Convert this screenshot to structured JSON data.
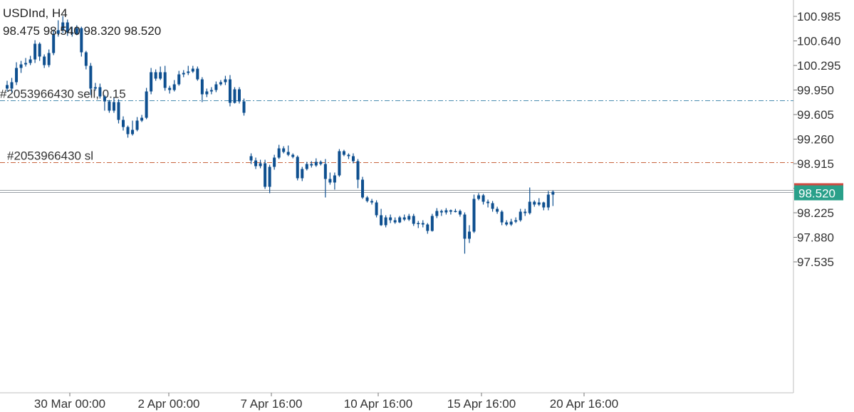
{
  "header": {
    "symbol": "USDInd",
    "timeframe": "H4",
    "title": "USDInd, H4",
    "ohlc": "98.475 98.540 98.320 98.520"
  },
  "colors": {
    "candle": "#0e4f8f",
    "grid_border": "#bfbfbf",
    "sell_line": "#4a8db0",
    "sl_line": "#c8643c",
    "price_tag_bg": "#2aa08a",
    "price_tag_bg_top": "#d04a40",
    "current_line": "#9aa0a6"
  },
  "chart_data": {
    "type": "candlestick",
    "y_ticks": [
      "100.985",
      "100.640",
      "100.295",
      "99.950",
      "99.605",
      "99.260",
      "98.915",
      "98.570",
      "98.225",
      "97.880",
      "97.535"
    ],
    "ylim": [
      97.25,
      101.1
    ],
    "x_ticks": [
      "30 Mar 00:00",
      "2 Apr 00:00",
      "7 Apr 16:00",
      "10 Apr 16:00",
      "15 Apr 16:00",
      "20 Apr 16:00"
    ],
    "current_price": 98.52,
    "current_price_label": "98.520",
    "order_lines": [
      {
        "label": "#2053966430 sell, 0.15",
        "price": 99.8,
        "kind": "sell"
      },
      {
        "label": "#2053966430 sl",
        "price": 98.93,
        "kind": "sl"
      }
    ],
    "candles": [
      [
        100.02,
        99.97,
        100.08,
        99.93
      ],
      [
        99.97,
        100.06,
        100.12,
        99.92
      ],
      [
        100.06,
        100.26,
        100.34,
        100.02
      ],
      [
        100.26,
        100.31,
        100.36,
        100.19
      ],
      [
        100.31,
        100.33,
        100.4,
        100.28
      ],
      [
        100.33,
        100.38,
        100.43,
        100.3
      ],
      [
        100.38,
        100.6,
        100.65,
        100.33
      ],
      [
        100.6,
        100.42,
        100.62,
        100.36
      ],
      [
        100.42,
        100.3,
        100.45,
        100.26
      ],
      [
        100.3,
        100.47,
        100.52,
        100.27
      ],
      [
        100.47,
        100.74,
        100.8,
        100.44
      ],
      [
        100.74,
        100.79,
        100.93,
        100.7
      ],
      [
        100.79,
        100.9,
        100.99,
        100.75
      ],
      [
        100.9,
        100.76,
        100.94,
        100.71
      ],
      [
        100.76,
        100.74,
        100.84,
        100.7
      ],
      [
        100.74,
        100.82,
        100.86,
        100.72
      ],
      [
        100.82,
        100.48,
        100.84,
        100.42
      ],
      [
        100.48,
        100.29,
        100.5,
        100.24
      ],
      [
        100.29,
        99.97,
        100.33,
        99.88
      ],
      [
        99.97,
        99.99,
        100.05,
        99.94
      ],
      [
        99.99,
        99.86,
        100.04,
        99.83
      ],
      [
        99.86,
        99.79,
        99.88,
        99.66
      ],
      [
        99.79,
        99.66,
        99.81,
        99.63
      ],
      [
        99.66,
        99.78,
        99.84,
        99.63
      ],
      [
        99.78,
        99.53,
        99.82,
        99.48
      ],
      [
        99.53,
        99.43,
        99.58,
        99.38
      ],
      [
        99.43,
        99.33,
        99.45,
        99.28
      ],
      [
        99.33,
        99.39,
        99.52,
        99.31
      ],
      [
        99.39,
        99.52,
        99.57,
        99.37
      ],
      [
        99.52,
        99.56,
        99.6,
        99.5
      ],
      [
        99.56,
        99.93,
        99.98,
        99.54
      ],
      [
        99.93,
        100.2,
        100.26,
        99.89
      ],
      [
        100.2,
        100.11,
        100.24,
        100.08
      ],
      [
        100.11,
        100.2,
        100.28,
        100.09
      ],
      [
        100.2,
        99.98,
        100.29,
        99.94
      ],
      [
        99.98,
        99.95,
        100.01,
        99.9
      ],
      [
        99.95,
        100.03,
        100.09,
        99.93
      ],
      [
        100.03,
        100.17,
        100.22,
        100.01
      ],
      [
        100.17,
        100.19,
        100.23,
        100.13
      ],
      [
        100.19,
        100.21,
        100.29,
        100.16
      ],
      [
        100.21,
        100.25,
        100.29,
        100.19
      ],
      [
        100.25,
        100.1,
        100.28,
        100.08
      ],
      [
        100.1,
        99.89,
        100.13,
        99.78
      ],
      [
        99.89,
        99.93,
        99.97,
        99.85
      ],
      [
        99.93,
        99.95,
        99.99,
        99.89
      ],
      [
        99.95,
        100.03,
        100.07,
        99.92
      ],
      [
        100.03,
        100.06,
        100.09,
        100.01
      ],
      [
        100.06,
        100.1,
        100.15,
        100.02
      ],
      [
        100.1,
        99.77,
        100.16,
        99.72
      ],
      [
        99.77,
        99.96,
        99.99,
        99.76
      ],
      [
        99.96,
        99.79,
        99.99,
        99.76
      ],
      [
        99.79,
        99.63,
        99.83,
        99.59
      ],
      [
        99.02,
        98.96,
        99.06,
        98.91
      ],
      [
        98.96,
        98.88,
        99.0,
        98.84
      ],
      [
        98.88,
        98.92,
        98.97,
        98.85
      ],
      [
        98.92,
        98.59,
        98.97,
        98.56
      ],
      [
        98.59,
        98.87,
        98.9,
        98.5
      ],
      [
        98.87,
        99.0,
        99.04,
        98.83
      ],
      [
        99.0,
        99.13,
        99.18,
        98.98
      ],
      [
        99.13,
        99.08,
        99.16,
        99.06
      ],
      [
        99.08,
        99.04,
        99.17,
        99.02
      ],
      [
        99.04,
        99.01,
        99.06,
        98.99
      ],
      [
        99.01,
        98.71,
        99.03,
        98.68
      ],
      [
        98.71,
        98.84,
        98.87,
        98.67
      ],
      [
        98.84,
        98.91,
        98.94,
        98.82
      ],
      [
        98.91,
        98.89,
        98.95,
        98.86
      ],
      [
        98.89,
        98.94,
        98.99,
        98.87
      ],
      [
        98.94,
        98.91,
        98.96,
        98.89
      ],
      [
        98.91,
        98.7,
        98.98,
        98.44
      ],
      [
        98.7,
        98.65,
        98.79,
        98.62
      ],
      [
        98.65,
        98.75,
        98.79,
        98.55
      ],
      [
        98.75,
        99.09,
        99.12,
        98.73
      ],
      [
        99.09,
        99.04,
        99.11,
        99.02
      ],
      [
        99.04,
        99.02,
        99.06,
        98.98
      ],
      [
        99.02,
        98.95,
        99.06,
        98.92
      ],
      [
        98.95,
        98.69,
        98.98,
        98.57
      ],
      [
        98.69,
        98.44,
        98.73,
        98.42
      ],
      [
        98.44,
        98.39,
        98.46,
        98.37
      ],
      [
        98.39,
        98.37,
        98.42,
        98.34
      ],
      [
        98.37,
        98.19,
        98.4,
        98.16
      ],
      [
        98.19,
        98.05,
        98.28,
        98.04
      ],
      [
        98.05,
        98.16,
        98.19,
        98.02
      ],
      [
        98.16,
        98.12,
        98.2,
        98.08
      ],
      [
        98.12,
        98.09,
        98.16,
        98.07
      ],
      [
        98.09,
        98.16,
        98.18,
        98.08
      ],
      [
        98.16,
        98.13,
        98.2,
        98.11
      ],
      [
        98.13,
        98.18,
        98.21,
        98.11
      ],
      [
        98.18,
        98.07,
        98.21,
        98.04
      ],
      [
        98.07,
        98.08,
        98.11,
        98.01
      ],
      [
        98.08,
        98.06,
        98.12,
        98.02
      ],
      [
        98.06,
        97.97,
        98.08,
        97.93
      ],
      [
        97.97,
        98.18,
        98.21,
        97.96
      ],
      [
        98.18,
        98.25,
        98.29,
        98.15
      ],
      [
        98.25,
        98.23,
        98.27,
        98.18
      ],
      [
        98.23,
        98.26,
        98.29,
        98.2
      ],
      [
        98.26,
        98.24,
        98.27,
        98.2
      ],
      [
        98.24,
        98.25,
        98.28,
        98.23
      ],
      [
        98.25,
        98.2,
        98.27,
        98.17
      ],
      [
        98.2,
        97.86,
        98.23,
        97.65
      ],
      [
        97.86,
        97.96,
        98.05,
        97.8
      ],
      [
        97.96,
        98.42,
        98.48,
        97.94
      ],
      [
        98.42,
        98.47,
        98.5,
        98.4
      ],
      [
        98.47,
        98.38,
        98.49,
        98.34
      ],
      [
        98.38,
        98.36,
        98.41,
        98.3
      ],
      [
        98.36,
        98.28,
        98.39,
        98.24
      ],
      [
        98.28,
        98.24,
        98.31,
        98.21
      ],
      [
        98.24,
        98.09,
        98.26,
        98.05
      ],
      [
        98.09,
        98.06,
        98.12,
        98.04
      ],
      [
        98.06,
        98.1,
        98.14,
        98.04
      ],
      [
        98.1,
        98.12,
        98.16,
        98.08
      ],
      [
        98.12,
        98.24,
        98.28,
        98.1
      ],
      [
        98.24,
        98.22,
        98.28,
        98.18
      ],
      [
        98.22,
        98.38,
        98.58,
        98.2
      ],
      [
        98.38,
        98.34,
        98.4,
        98.31
      ],
      [
        98.34,
        98.37,
        98.43,
        98.32
      ],
      [
        98.37,
        98.3,
        98.38,
        98.26
      ],
      [
        98.3,
        98.48,
        98.53,
        98.26
      ],
      [
        98.48,
        98.52,
        98.54,
        98.32
      ]
    ]
  }
}
